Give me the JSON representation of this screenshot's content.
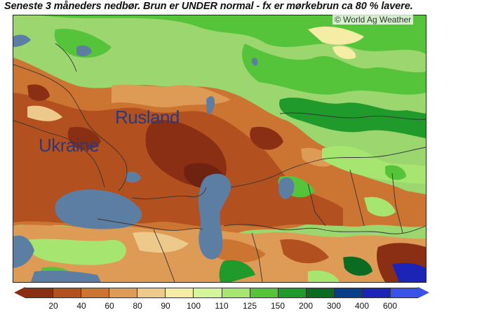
{
  "title": "Seneste 3 måneders nedbør. Brun er UNDER normal - fx er mørkebrun ca 80 % lavere.",
  "watermark": "© World Ag Weather",
  "map": {
    "labels": {
      "russia": "Rusland",
      "ukraine": "Ukraine"
    },
    "colors": {
      "water": "#5d7ea3",
      "border": "#333333"
    }
  },
  "legend": {
    "colors": [
      "#8b2f14",
      "#b2501f",
      "#cc7431",
      "#dd9b56",
      "#edc98c",
      "#f5eca6",
      "#d4f59a",
      "#a6e570",
      "#56c43a",
      "#1f9a2b",
      "#0b6b20",
      "#083f8a",
      "#1c24b8",
      "#3a52e8"
    ],
    "arrow_left_color": "#8b2f14",
    "arrow_right_color": "#3a52e8",
    "ticks": [
      "20",
      "40",
      "60",
      "80",
      "90",
      "100",
      "110",
      "125",
      "150",
      "200",
      "300",
      "400",
      "600"
    ]
  }
}
